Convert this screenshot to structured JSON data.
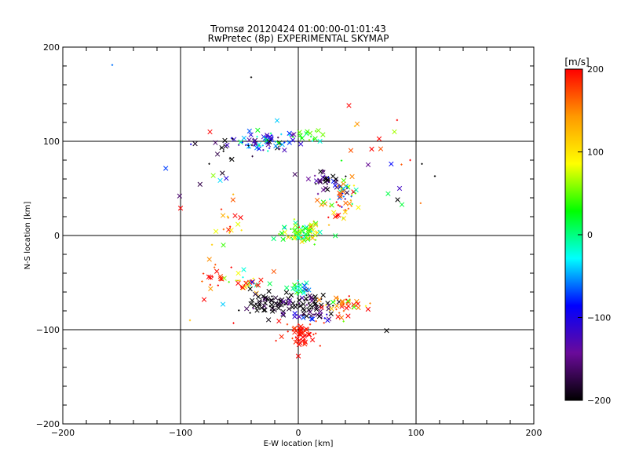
{
  "chart_data": {
    "type": "scatter",
    "title": "Tromsø 20120424 01:00:00-01:01:43",
    "subtitle": "RwPretec (8p) EXPERIMENTAL SKYMAP",
    "xlabel": "E-W location [km]",
    "ylabel": "N-S location [km]",
    "xlim": [
      -200,
      200
    ],
    "ylim": [
      -200,
      200
    ],
    "x_ticks": [
      -200,
      -100,
      0,
      100,
      200
    ],
    "y_ticks": [
      -200,
      -100,
      0,
      100,
      200
    ],
    "x_tick_labels": [
      "−200",
      "−100",
      "0",
      "100",
      "200"
    ],
    "y_tick_labels": [
      "−200",
      "−100",
      "0",
      "100",
      "200"
    ],
    "grid_lines": [
      -100,
      0,
      100
    ],
    "colorbar": {
      "label": "[m/s]",
      "range": [
        -200,
        200
      ],
      "ticks": [
        200,
        100,
        0,
        -100,
        -200
      ],
      "tick_labels": [
        "200",
        "100",
        "0",
        "−100",
        "−200"
      ],
      "colors": [
        "#000000",
        "#6a0a9a",
        "#0000ff",
        "#00ffff",
        "#00ff00",
        "#ffff00",
        "#ff9900",
        "#ff0000"
      ]
    },
    "clusters": [
      {
        "cx": -25,
        "cy": 100,
        "sx": 14,
        "sy": 5,
        "n": 70,
        "v": -90,
        "vs": 60
      },
      {
        "cx": 8,
        "cy": 107,
        "sx": 6,
        "sy": 3,
        "n": 15,
        "v": 30,
        "vs": 30
      },
      {
        "cx": -62,
        "cy": 95,
        "sx": 8,
        "sy": 10,
        "n": 12,
        "v": -200,
        "vs": 40
      },
      {
        "cx": 25,
        "cy": 58,
        "sx": 8,
        "sy": 6,
        "n": 40,
        "v": -170,
        "vs": 40
      },
      {
        "cx": 40,
        "cy": 45,
        "sx": 6,
        "sy": 8,
        "n": 30,
        "v": 20,
        "vs": 80
      },
      {
        "cx": 33,
        "cy": 28,
        "sx": 10,
        "sy": 7,
        "n": 30,
        "v": 140,
        "vs": 60
      },
      {
        "cx": 2,
        "cy": 2,
        "sx": 9,
        "sy": 6,
        "n": 80,
        "v": 40,
        "vs": 50
      },
      {
        "cx": -60,
        "cy": 15,
        "sx": 8,
        "sy": 12,
        "n": 18,
        "v": 150,
        "vs": 60
      },
      {
        "cx": -75,
        "cy": -42,
        "sx": 8,
        "sy": 6,
        "n": 18,
        "v": 180,
        "vs": 30
      },
      {
        "cx": -45,
        "cy": -50,
        "sx": 10,
        "sy": 8,
        "n": 30,
        "v": 120,
        "vs": 120
      },
      {
        "cx": -25,
        "cy": -72,
        "sx": 12,
        "sy": 6,
        "n": 60,
        "v": -200,
        "vs": 20
      },
      {
        "cx": 10,
        "cy": -72,
        "sx": 12,
        "sy": 6,
        "n": 60,
        "v": -190,
        "vs": 30
      },
      {
        "cx": 40,
        "cy": -75,
        "sx": 10,
        "sy": 5,
        "n": 40,
        "v": 160,
        "vs": 60
      },
      {
        "cx": 2,
        "cy": -57,
        "sx": 5,
        "sy": 4,
        "n": 20,
        "v": -20,
        "vs": 40
      },
      {
        "cx": 8,
        "cy": -85,
        "sx": 10,
        "sy": 4,
        "n": 20,
        "v": -120,
        "vs": 60
      },
      {
        "cx": 2,
        "cy": -106,
        "sx": 8,
        "sy": 7,
        "n": 55,
        "v": 195,
        "vs": 15
      },
      {
        "cx": 60,
        "cy": 100,
        "sx": 20,
        "sy": 15,
        "n": 8,
        "v": 170,
        "vs": 50
      },
      {
        "cx": 80,
        "cy": 55,
        "sx": 15,
        "sy": 15,
        "n": 6,
        "v": -50,
        "vs": 100
      },
      {
        "cx": -80,
        "cy": 60,
        "sx": 15,
        "sy": 25,
        "n": 10,
        "v": -150,
        "vs": 80
      }
    ],
    "points": [
      {
        "x": -158,
        "y": 181,
        "v": -60,
        "m": "+"
      },
      {
        "x": -40,
        "y": 168,
        "v": -200,
        "m": "+"
      },
      {
        "x": 43,
        "y": 138,
        "v": 200,
        "m": "x"
      },
      {
        "x": -18,
        "y": 122,
        "v": -40,
        "m": "x"
      },
      {
        "x": -75,
        "y": 110,
        "v": 200,
        "m": "x"
      },
      {
        "x": 70,
        "y": 92,
        "v": 170,
        "m": "x"
      },
      {
        "x": 105,
        "y": 76,
        "v": -200,
        "m": "+"
      },
      {
        "x": 116,
        "y": 63,
        "v": -200,
        "m": "+"
      },
      {
        "x": 86,
        "y": 50,
        "v": -120,
        "m": "x"
      },
      {
        "x": -100,
        "y": 29,
        "v": 200,
        "m": "x"
      },
      {
        "x": 75,
        "y": -101,
        "v": -200,
        "m": "x"
      },
      {
        "x": -64,
        "y": -73,
        "v": -40,
        "m": "x"
      },
      {
        "x": -80,
        "y": -68,
        "v": 200,
        "m": "x"
      },
      {
        "x": -92,
        "y": -90,
        "v": 120,
        "m": "+"
      },
      {
        "x": -55,
        "y": -93,
        "v": 200,
        "m": "+"
      },
      {
        "x": 0,
        "y": -128,
        "v": 200,
        "m": "x"
      },
      {
        "x": 61,
        "y": -72,
        "v": 150,
        "m": "+"
      },
      {
        "x": 48,
        "y": 116,
        "v": 120,
        "m": "+"
      },
      {
        "x": 95,
        "y": 80,
        "v": 200,
        "m": "+"
      }
    ]
  }
}
